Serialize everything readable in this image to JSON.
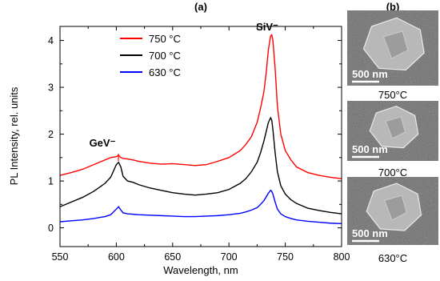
{
  "chart_data": {
    "type": "line",
    "title": "(a)",
    "x_label": "Wavelength, nm",
    "y_label": "PL Intensity, rel. units",
    "annotations": [
      "GeV⁻",
      "SiV⁻"
    ],
    "x": [
      550,
      560,
      570,
      580,
      590,
      595,
      600,
      602,
      604,
      606,
      610,
      615,
      620,
      630,
      640,
      650,
      660,
      670,
      680,
      690,
      700,
      710,
      715,
      720,
      725,
      728,
      731,
      733,
      735,
      737,
      738,
      739,
      741,
      743,
      746,
      750,
      755,
      760,
      770,
      780,
      790,
      800
    ],
    "series": [
      {
        "name": "750 °C",
        "color": "#ff0000",
        "values": [
          1.12,
          1.18,
          1.25,
          1.35,
          1.45,
          1.5,
          1.52,
          1.55,
          1.5,
          1.48,
          1.47,
          1.45,
          1.42,
          1.38,
          1.36,
          1.37,
          1.35,
          1.33,
          1.35,
          1.42,
          1.5,
          1.65,
          1.78,
          1.95,
          2.25,
          2.55,
          2.9,
          3.3,
          3.8,
          4.1,
          4.12,
          4.0,
          3.4,
          2.6,
          2.0,
          1.65,
          1.45,
          1.3,
          1.18,
          1.12,
          1.08,
          1.05
        ]
      },
      {
        "name": "700 °C",
        "color": "#000000",
        "values": [
          0.45,
          0.55,
          0.65,
          0.78,
          0.95,
          1.08,
          1.35,
          1.4,
          1.3,
          1.1,
          1.0,
          0.97,
          0.92,
          0.85,
          0.8,
          0.75,
          0.72,
          0.7,
          0.72,
          0.75,
          0.82,
          0.95,
          1.05,
          1.2,
          1.4,
          1.6,
          1.85,
          2.05,
          2.25,
          2.35,
          2.3,
          2.1,
          1.6,
          1.2,
          0.9,
          0.72,
          0.6,
          0.52,
          0.42,
          0.37,
          0.33,
          0.3
        ]
      },
      {
        "name": "630 °C",
        "color": "#0000ff",
        "values": [
          0.13,
          0.15,
          0.17,
          0.2,
          0.24,
          0.28,
          0.4,
          0.45,
          0.38,
          0.32,
          0.3,
          0.29,
          0.28,
          0.27,
          0.26,
          0.25,
          0.24,
          0.24,
          0.25,
          0.26,
          0.28,
          0.31,
          0.34,
          0.38,
          0.43,
          0.5,
          0.58,
          0.66,
          0.74,
          0.8,
          0.78,
          0.72,
          0.55,
          0.4,
          0.3,
          0.24,
          0.2,
          0.17,
          0.14,
          0.12,
          0.1,
          0.09
        ]
      }
    ],
    "xlim": [
      550,
      800
    ],
    "xticks": [
      550,
      600,
      650,
      700,
      750,
      800
    ],
    "ylim": [
      -0.4,
      4.3
    ],
    "yticks": [
      0,
      1,
      2,
      3,
      4
    ],
    "legend": "upper-left"
  },
  "sem_panel": {
    "title": "(b)",
    "images": [
      {
        "scale_bar": "500 nm",
        "caption": "750°C"
      },
      {
        "scale_bar": "500 nm",
        "caption": "700°C"
      },
      {
        "scale_bar": "500 nm",
        "caption": "630°C"
      }
    ]
  }
}
